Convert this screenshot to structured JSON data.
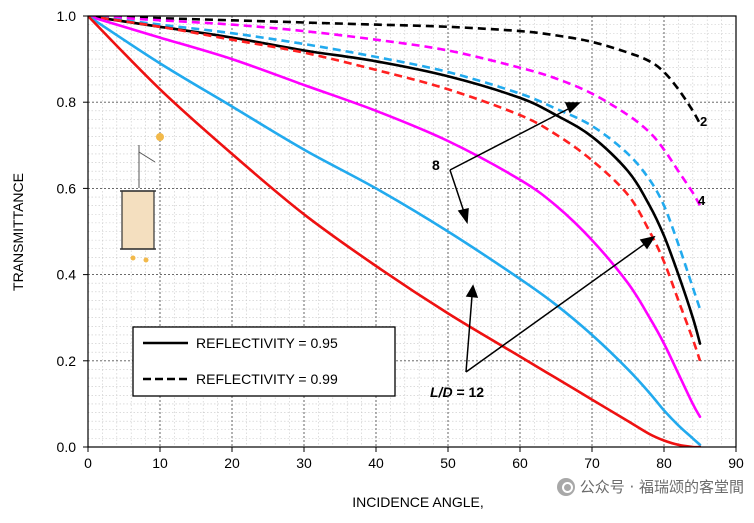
{
  "chart_data": {
    "type": "line",
    "ylabel": "TRANSMITTANCE",
    "xlabel": "INCIDENCE ANGLE,",
    "xlim": [
      0,
      90
    ],
    "ylim": [
      0,
      1.0
    ],
    "x_ticks": [
      "0",
      "10",
      "20",
      "30",
      "40",
      "50",
      "60",
      "70",
      "80",
      "90"
    ],
    "y_ticks": [
      "0.0",
      "0.2",
      "0.4",
      "0.6",
      "0.8",
      "1.0"
    ],
    "grid": true,
    "legend_position": "lower-left",
    "legend": [
      {
        "label": "REFLECTIVITY = 0.95",
        "style": "solid"
      },
      {
        "label": "REFLECTIVITY = 0.99",
        "style": "dashed"
      }
    ],
    "annotations": [
      {
        "text": "2",
        "target_series": "L/D=2, R=0.99"
      },
      {
        "text": "4",
        "target_series": "L/D=4, R=0.99"
      },
      {
        "text": "8",
        "target_series": "L/D=8"
      },
      {
        "text_italic": "L/D",
        "text": " = 12",
        "target_series": "L/D=12"
      }
    ],
    "series": [
      {
        "id": "ld2-099",
        "color": "#000000",
        "dash": true,
        "x": [
          0,
          10,
          20,
          30,
          40,
          50,
          60,
          65,
          70,
          75,
          78,
          80,
          82,
          84,
          85
        ],
        "y": [
          1.0,
          0.995,
          0.99,
          0.985,
          0.98,
          0.975,
          0.965,
          0.955,
          0.94,
          0.915,
          0.895,
          0.87,
          0.83,
          0.78,
          0.75
        ]
      },
      {
        "id": "ld4-099",
        "color": "#ff00ff",
        "dash": true,
        "x": [
          0,
          10,
          20,
          30,
          40,
          50,
          60,
          65,
          70,
          75,
          78,
          80,
          82,
          84,
          85
        ],
        "y": [
          1.0,
          0.99,
          0.98,
          0.965,
          0.945,
          0.92,
          0.88,
          0.855,
          0.82,
          0.77,
          0.73,
          0.69,
          0.64,
          0.59,
          0.56
        ]
      },
      {
        "id": "ld8-099",
        "color": "#22aaee",
        "dash": true,
        "x": [
          0,
          10,
          20,
          30,
          40,
          50,
          60,
          65,
          70,
          75,
          78,
          80,
          82,
          84,
          85
        ],
        "y": [
          1.0,
          0.98,
          0.96,
          0.935,
          0.905,
          0.87,
          0.82,
          0.785,
          0.745,
          0.68,
          0.62,
          0.56,
          0.47,
          0.37,
          0.32
        ]
      },
      {
        "id": "ld2-095",
        "color": "#000000",
        "dash": false,
        "x": [
          0,
          10,
          20,
          30,
          40,
          50,
          60,
          65,
          70,
          75,
          78,
          80,
          82,
          84,
          85
        ],
        "y": [
          1.0,
          0.975,
          0.95,
          0.92,
          0.895,
          0.86,
          0.81,
          0.77,
          0.72,
          0.64,
          0.56,
          0.49,
          0.4,
          0.3,
          0.24
        ]
      },
      {
        "id": "ld12-099",
        "color": "#ff2020",
        "dash": true,
        "x": [
          0,
          10,
          20,
          30,
          40,
          50,
          60,
          65,
          70,
          75,
          78,
          80,
          82,
          84,
          85
        ],
        "y": [
          1.0,
          0.975,
          0.945,
          0.915,
          0.875,
          0.83,
          0.77,
          0.725,
          0.665,
          0.585,
          0.5,
          0.43,
          0.34,
          0.25,
          0.2
        ]
      },
      {
        "id": "ld4-095",
        "color": "#ff00ff",
        "dash": false,
        "x": [
          0,
          10,
          20,
          30,
          40,
          50,
          60,
          65,
          70,
          75,
          78,
          80,
          82,
          84,
          85
        ],
        "y": [
          1.0,
          0.95,
          0.9,
          0.84,
          0.78,
          0.71,
          0.62,
          0.56,
          0.48,
          0.38,
          0.3,
          0.24,
          0.17,
          0.1,
          0.07
        ]
      },
      {
        "id": "ld8-095",
        "color": "#22aaee",
        "dash": false,
        "x": [
          0,
          10,
          20,
          30,
          40,
          50,
          60,
          65,
          70,
          75,
          78,
          80,
          82,
          84,
          85
        ],
        "y": [
          1.0,
          0.89,
          0.79,
          0.69,
          0.6,
          0.5,
          0.39,
          0.33,
          0.26,
          0.18,
          0.125,
          0.085,
          0.05,
          0.02,
          0.005
        ]
      },
      {
        "id": "ld12-095",
        "color": "#ee1111",
        "dash": false,
        "x": [
          0,
          10,
          20,
          30,
          40,
          50,
          60,
          65,
          70,
          75,
          78,
          80,
          82,
          84,
          85
        ],
        "y": [
          1.0,
          0.83,
          0.68,
          0.54,
          0.42,
          0.31,
          0.21,
          0.16,
          0.11,
          0.06,
          0.03,
          0.015,
          0.005,
          0.0,
          0.0
        ]
      }
    ]
  },
  "watermark": {
    "icon": "wechat-official-account-icon",
    "text": "公众号 · 福瑞颂的客堂間"
  }
}
